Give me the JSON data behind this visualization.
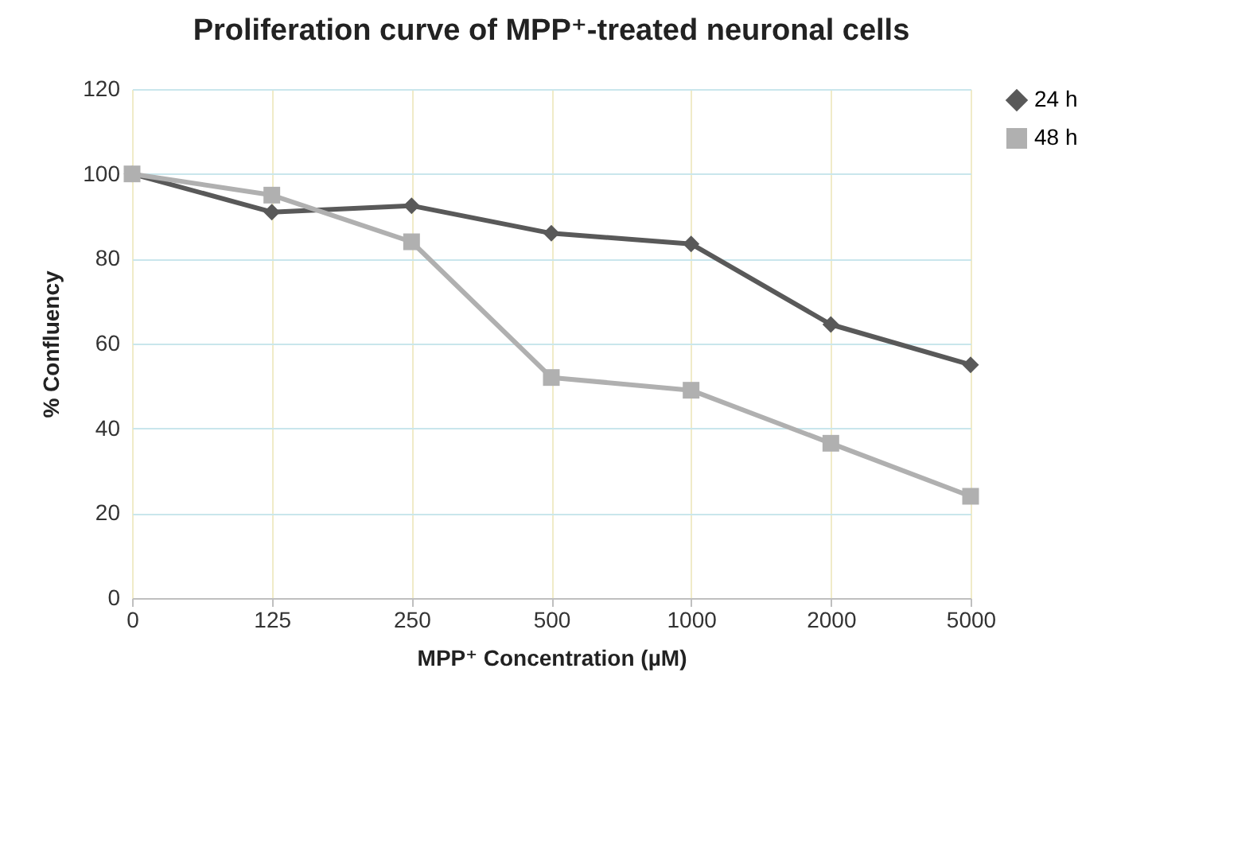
{
  "chart_data": {
    "type": "line",
    "title": "Proliferation curve of MPP⁺-treated neuronal cells",
    "xlabel": "MPP⁺ Concentration (µM)",
    "ylabel": "% Confluency",
    "categories": [
      "0",
      "125",
      "250",
      "500",
      "1000",
      "2000",
      "5000"
    ],
    "series": [
      {
        "name": "24 h",
        "color": "#595959",
        "marker": "diamond",
        "values": [
          100,
          91,
          92.5,
          86,
          83.5,
          64.5,
          55
        ]
      },
      {
        "name": "48 h",
        "color": "#b0b0b0",
        "marker": "square",
        "values": [
          100,
          95,
          84,
          52,
          49,
          36.5,
          24
        ]
      }
    ],
    "ylim": [
      0,
      120
    ],
    "yticks": [
      0,
      20,
      40,
      60,
      80,
      100,
      120
    ],
    "grid": true,
    "legend": "right",
    "line_style": "solid"
  }
}
